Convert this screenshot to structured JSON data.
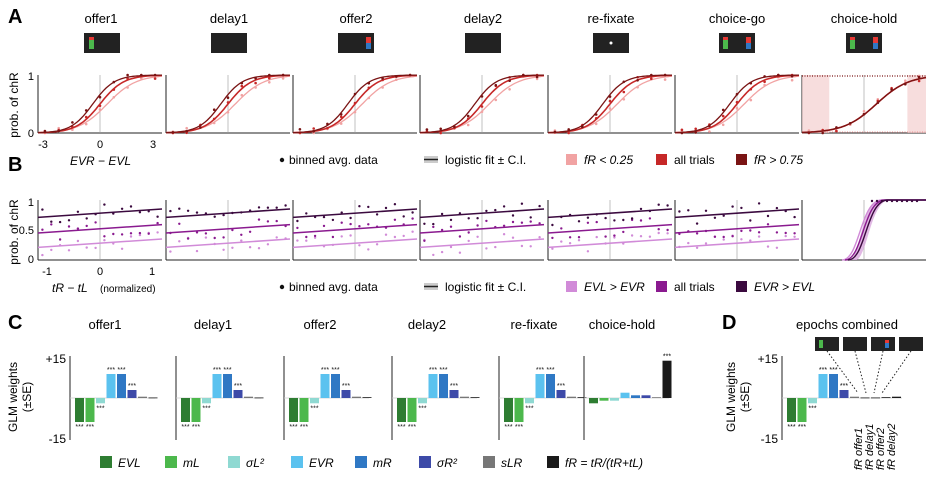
{
  "panels": {
    "a": "A",
    "b": "B",
    "c": "C",
    "d": "D"
  },
  "epochs": [
    "offer1",
    "delay1",
    "offer2",
    "delay2",
    "re-fixate",
    "choice-go",
    "choice-hold"
  ],
  "axes": {
    "ylabel_ab": "prob. of chR",
    "a_xlabel": "EVR − EVL",
    "a_xticks": [
      "-3",
      "0",
      "3"
    ],
    "b_xlabel": "tR − tL",
    "b_xlabel_note": "(normalized)",
    "b_xticks": [
      "-1",
      "0",
      "1"
    ],
    "yticks": [
      "1",
      "0.5",
      "0"
    ],
    "glm_ylabel": "GLM weights",
    "glm_ylabel2": "(±SE)",
    "glm_yticks": [
      "+15",
      "0",
      "-15"
    ]
  },
  "legend_a": {
    "binned": "binned avg. data",
    "fit": "logistic fit ± C.I.",
    "low": "fR < 0.25",
    "all": "all trials",
    "high": "fR > 0.75"
  },
  "legend_b": {
    "binned": "binned avg. data",
    "fit": "logistic fit ± C.I.",
    "left": "EVL > EVR",
    "all": "all trials",
    "right": "EVR > EVL"
  },
  "panel_c_titles": [
    "offer1",
    "delay1",
    "offer2",
    "delay2",
    "re-fixate",
    "choice-hold"
  ],
  "panel_d_title": "epochs combined",
  "panel_d_labels": [
    "fR offer1",
    "fR delay1",
    "fR offer2",
    "fR delay2"
  ],
  "regressors": [
    {
      "label": "EVL",
      "color": "#2e7d32"
    },
    {
      "label": "mL",
      "color": "#4cb84c"
    },
    {
      "label": "σL²",
      "color": "#8fd9d2"
    },
    {
      "label": "EVR",
      "color": "#5bc2ef"
    },
    {
      "label": "mR",
      "color": "#2f78c4"
    },
    {
      "label": "σR²",
      "color": "#3d4aa8"
    },
    {
      "label": "sLR",
      "color": "#777777"
    },
    {
      "label": "fR = tR/(tR+tL)",
      "color": "#1a1a1a"
    }
  ],
  "colors": {
    "a_low": "#f1a3a3",
    "a_all": "#c62828",
    "a_high": "#7a1414",
    "b_left": "#d18bd8",
    "b_all": "#8a1a8f",
    "b_high": "#3b0a3f"
  },
  "chart_data": [
    {
      "type": "line",
      "title": "A",
      "xlabel": "EVR − EVL",
      "ylabel": "prob. of chR",
      "xlim": [
        -3,
        3
      ],
      "ylim": [
        0,
        1
      ],
      "series": [
        {
          "name": "fR < 0.25"
        },
        {
          "name": "all trials"
        },
        {
          "name": "fR > 0.75"
        }
      ]
    },
    {
      "type": "line",
      "title": "B",
      "xlabel": "tR − tL (normalized)",
      "ylabel": "prob. of chR",
      "xlim": [
        -1,
        1
      ],
      "ylim": [
        0,
        1
      ],
      "series": [
        {
          "name": "EVL > EVR"
        },
        {
          "name": "all trials"
        },
        {
          "name": "EVR > EVL"
        }
      ]
    },
    {
      "type": "bar",
      "title": "C",
      "ylabel": "GLM weights (±SE)",
      "ylim": [
        -15,
        15
      ],
      "categories": [
        "EVL",
        "mL",
        "σL²",
        "EVR",
        "mR",
        "σR²",
        "sLR",
        "fR = tR/(tR+tL)"
      ],
      "series": [
        {
          "name": "offer1",
          "values": [
            -9,
            -9,
            -2,
            9,
            9,
            3,
            0.5,
            0.2
          ]
        },
        {
          "name": "delay1",
          "values": [
            -9,
            -9,
            -2,
            9,
            9,
            3,
            0.5,
            0.2
          ]
        },
        {
          "name": "offer2",
          "values": [
            -9,
            -9,
            -2,
            9,
            9,
            3,
            0.5,
            0.3
          ]
        },
        {
          "name": "delay2",
          "values": [
            -9,
            -9,
            -2,
            9,
            9,
            3,
            0.5,
            0.3
          ]
        },
        {
          "name": "re-fixate",
          "values": [
            -9,
            -9,
            -2,
            9,
            9,
            3,
            0.5,
            0.3
          ]
        },
        {
          "name": "choice-hold",
          "values": [
            -2,
            -1,
            -1,
            2,
            1,
            1,
            0.3,
            14
          ]
        }
      ]
    },
    {
      "type": "bar",
      "title": "D",
      "ylabel": "GLM weights (±SE)",
      "ylim": [
        -15,
        15
      ],
      "categories": [
        "EVL",
        "mL",
        "σL²",
        "EVR",
        "mR",
        "σR²",
        "sLR",
        "fR offer1",
        "fR delay1",
        "fR offer2",
        "fR delay2"
      ],
      "values": [
        -9,
        -9,
        -2,
        9,
        9,
        3,
        0.5,
        0.2,
        0.2,
        0.3,
        0.5
      ]
    }
  ]
}
